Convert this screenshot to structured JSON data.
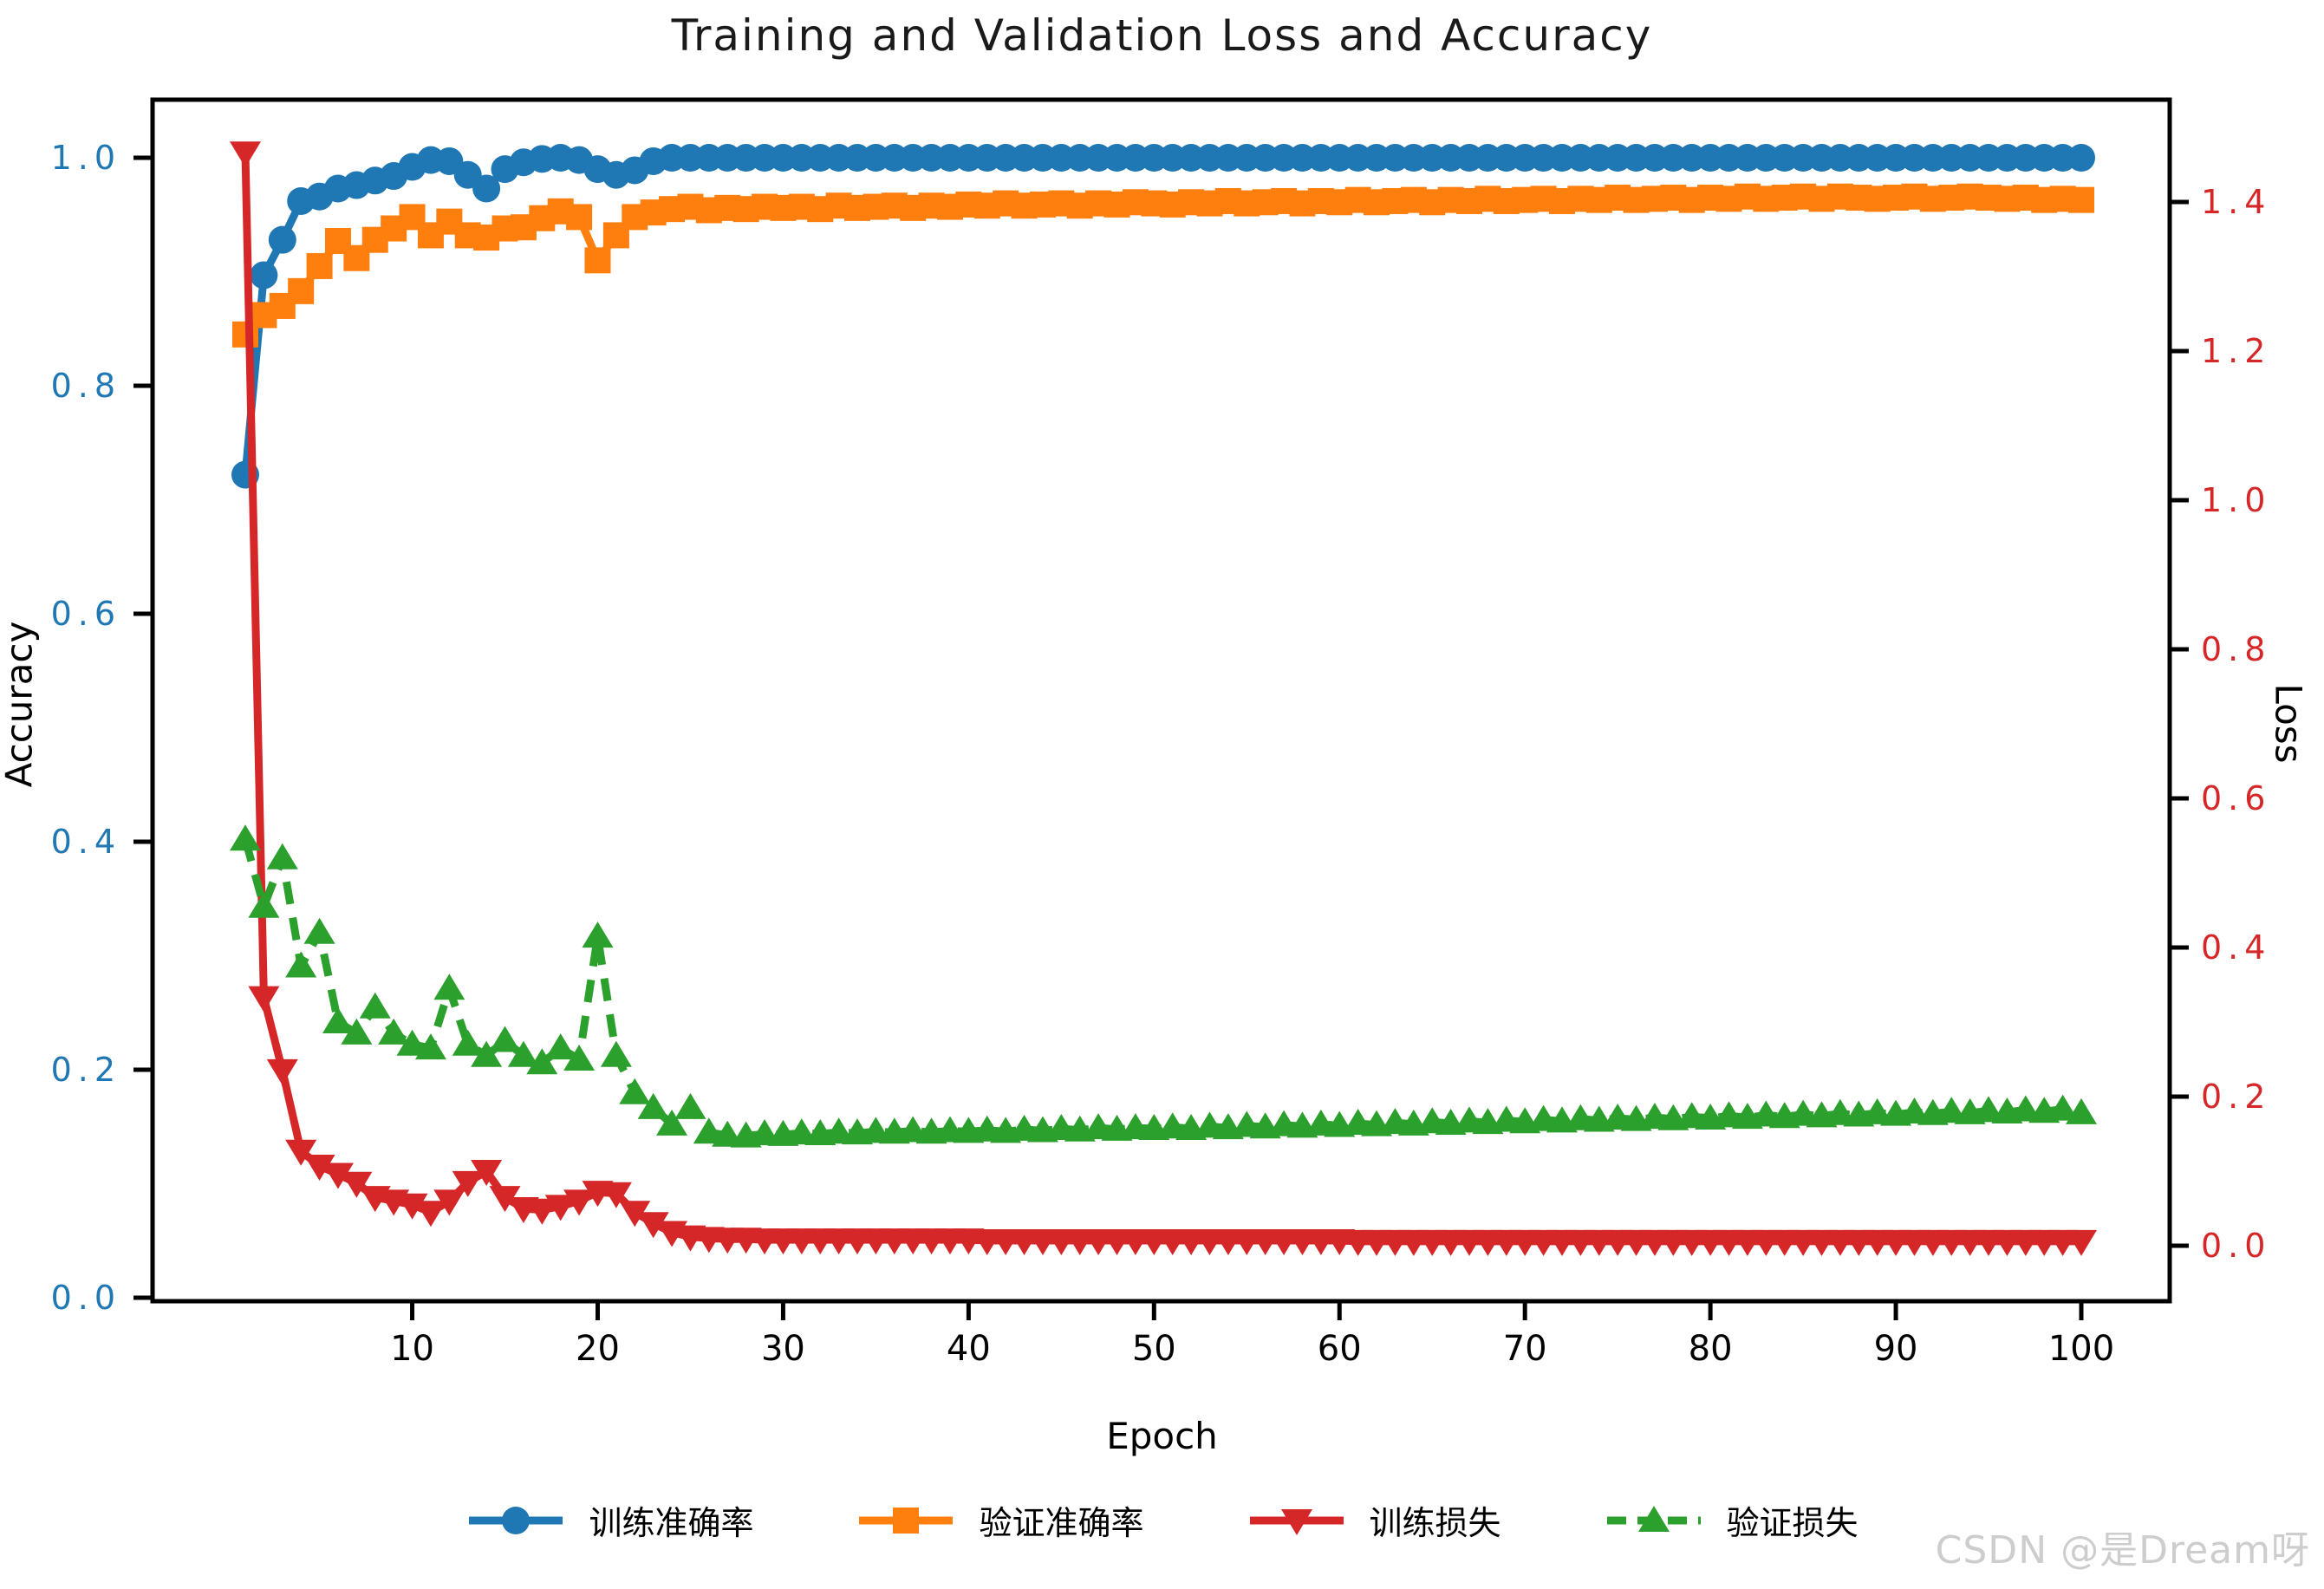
{
  "watermark": "CSDN @是Dream呀",
  "chart_data": {
    "type": "line",
    "title": "Training and Validation Loss and Accuracy",
    "xlabel": "Epoch",
    "ylabel_left": "Accuracy",
    "ylabel_right": "Loss",
    "grid": false,
    "legend_position": "bottom",
    "x_axis": {
      "ticks": [
        10,
        20,
        30,
        40,
        50,
        60,
        70,
        80,
        90,
        100
      ],
      "ticklabels": [
        "10",
        "20",
        "30",
        "40",
        "50",
        "60",
        "70",
        "80",
        "90",
        "100"
      ],
      "range": [
        -4,
        105
      ]
    },
    "left_axis": {
      "ticks": [
        0.0,
        0.2,
        0.4,
        0.6,
        0.8,
        1.0
      ],
      "ticklabels": [
        "0.0",
        "0.2",
        "0.4",
        "0.6",
        "0.8",
        "1.0"
      ],
      "range": [
        0,
        1.054
      ],
      "color": "#1f77b4"
    },
    "right_axis": {
      "ticks": [
        0.0,
        0.2,
        0.4,
        0.6,
        0.8,
        1.0,
        1.2,
        1.4
      ],
      "ticklabels": [
        "0.0",
        "0.2",
        "0.4",
        "0.6",
        "0.8",
        "1.0",
        "1.2",
        "1.4"
      ],
      "range": [
        -0.073,
        1.533
      ],
      "color": "#d62728"
    },
    "epochs": [
      1,
      2,
      3,
      4,
      5,
      6,
      7,
      8,
      9,
      10,
      11,
      12,
      13,
      14,
      15,
      16,
      17,
      18,
      19,
      20,
      21,
      22,
      23,
      24,
      25,
      26,
      27,
      28,
      29,
      30,
      31,
      32,
      33,
      34,
      35,
      36,
      37,
      38,
      39,
      40,
      41,
      42,
      43,
      44,
      45,
      46,
      47,
      48,
      49,
      50,
      51,
      52,
      53,
      54,
      55,
      56,
      57,
      58,
      59,
      60,
      61,
      62,
      63,
      64,
      65,
      66,
      67,
      68,
      69,
      70,
      71,
      72,
      73,
      74,
      75,
      76,
      77,
      78,
      79,
      80,
      81,
      82,
      83,
      84,
      85,
      86,
      87,
      88,
      89,
      90,
      91,
      92,
      93,
      94,
      95,
      96,
      97,
      98,
      99,
      100
    ],
    "series": [
      {
        "key": "train-accuracy",
        "name": "训练准确率",
        "axis": "left",
        "color": "#1f77b4",
        "marker": "circle",
        "linestyle": "solid",
        "values": [
          0.722,
          0.897,
          0.928,
          0.962,
          0.966,
          0.973,
          0.976,
          0.98,
          0.984,
          0.992,
          0.998,
          0.997,
          0.985,
          0.973,
          0.99,
          0.996,
          0.999,
          1.0,
          0.998,
          0.99,
          0.985,
          0.989,
          0.997,
          1.0,
          1.0,
          1.0,
          1.0,
          1.0,
          1.0,
          1.0,
          1.0,
          1.0,
          1.0,
          1.0,
          1.0,
          1.0,
          1.0,
          1.0,
          1.0,
          1.0,
          1.0,
          1.0,
          1.0,
          1.0,
          1.0,
          1.0,
          1.0,
          1.0,
          1.0,
          1.0,
          1.0,
          1.0,
          1.0,
          1.0,
          1.0,
          1.0,
          1.0,
          1.0,
          1.0,
          1.0,
          1.0,
          1.0,
          1.0,
          1.0,
          1.0,
          1.0,
          1.0,
          1.0,
          1.0,
          1.0,
          1.0,
          1.0,
          1.0,
          1.0,
          1.0,
          1.0,
          1.0,
          1.0,
          1.0,
          1.0,
          1.0,
          1.0,
          1.0,
          1.0,
          1.0,
          1.0,
          1.0,
          1.0,
          1.0,
          1.0,
          1.0,
          1.0,
          1.0,
          1.0,
          1.0,
          1.0,
          1.0,
          1.0,
          1.0,
          1.0
        ]
      },
      {
        "key": "val-accuracy",
        "name": "验证准确率",
        "axis": "left",
        "color": "#ff7f0e",
        "marker": "square",
        "linestyle": "solid",
        "values": [
          0.845,
          0.862,
          0.87,
          0.883,
          0.905,
          0.927,
          0.912,
          0.928,
          0.938,
          0.948,
          0.932,
          0.944,
          0.932,
          0.93,
          0.938,
          0.939,
          0.947,
          0.953,
          0.948,
          0.91,
          0.932,
          0.948,
          0.952,
          0.955,
          0.957,
          0.954,
          0.956,
          0.955,
          0.957,
          0.956,
          0.957,
          0.955,
          0.958,
          0.956,
          0.957,
          0.958,
          0.956,
          0.958,
          0.957,
          0.959,
          0.958,
          0.96,
          0.958,
          0.959,
          0.96,
          0.958,
          0.96,
          0.959,
          0.961,
          0.96,
          0.959,
          0.961,
          0.96,
          0.962,
          0.96,
          0.961,
          0.962,
          0.96,
          0.962,
          0.961,
          0.963,
          0.961,
          0.962,
          0.963,
          0.961,
          0.963,
          0.962,
          0.964,
          0.962,
          0.963,
          0.964,
          0.962,
          0.964,
          0.963,
          0.965,
          0.963,
          0.964,
          0.965,
          0.963,
          0.965,
          0.964,
          0.966,
          0.964,
          0.965,
          0.966,
          0.964,
          0.966,
          0.965,
          0.964,
          0.965,
          0.966,
          0.964,
          0.965,
          0.966,
          0.965,
          0.964,
          0.965,
          0.963,
          0.964,
          0.963
        ]
      },
      {
        "key": "train-loss",
        "name": "训练损失",
        "axis": "right",
        "color": "#d62728",
        "marker": "triangle-down",
        "linestyle": "solid",
        "values": [
          1.466,
          0.333,
          0.235,
          0.127,
          0.107,
          0.096,
          0.084,
          0.065,
          0.06,
          0.055,
          0.045,
          0.06,
          0.085,
          0.1,
          0.065,
          0.05,
          0.048,
          0.053,
          0.06,
          0.072,
          0.07,
          0.045,
          0.03,
          0.018,
          0.012,
          0.01,
          0.009,
          0.009,
          0.008,
          0.008,
          0.008,
          0.008,
          0.008,
          0.008,
          0.008,
          0.008,
          0.008,
          0.008,
          0.008,
          0.008,
          0.007,
          0.007,
          0.007,
          0.007,
          0.007,
          0.007,
          0.007,
          0.007,
          0.007,
          0.007,
          0.007,
          0.007,
          0.007,
          0.007,
          0.007,
          0.007,
          0.007,
          0.007,
          0.007,
          0.007,
          0.006,
          0.006,
          0.006,
          0.006,
          0.006,
          0.006,
          0.006,
          0.006,
          0.006,
          0.006,
          0.006,
          0.006,
          0.006,
          0.006,
          0.006,
          0.006,
          0.006,
          0.006,
          0.006,
          0.006,
          0.006,
          0.006,
          0.006,
          0.006,
          0.006,
          0.006,
          0.006,
          0.006,
          0.006,
          0.006,
          0.006,
          0.006,
          0.006,
          0.006,
          0.006,
          0.006,
          0.006,
          0.006,
          0.006,
          0.006
        ]
      },
      {
        "key": "val-loss",
        "name": "验证损失",
        "axis": "right",
        "color": "#2ca02c",
        "marker": "triangle-up",
        "linestyle": "dashed",
        "values": [
          0.545,
          0.455,
          0.52,
          0.375,
          0.42,
          0.3,
          0.285,
          0.32,
          0.285,
          0.27,
          0.265,
          0.345,
          0.27,
          0.255,
          0.275,
          0.255,
          0.245,
          0.265,
          0.25,
          0.415,
          0.255,
          0.205,
          0.185,
          0.163,
          0.185,
          0.152,
          0.148,
          0.147,
          0.15,
          0.149,
          0.151,
          0.15,
          0.152,
          0.151,
          0.153,
          0.152,
          0.154,
          0.152,
          0.154,
          0.153,
          0.155,
          0.153,
          0.156,
          0.154,
          0.157,
          0.155,
          0.158,
          0.156,
          0.158,
          0.157,
          0.159,
          0.157,
          0.16,
          0.158,
          0.161,
          0.159,
          0.162,
          0.16,
          0.163,
          0.161,
          0.164,
          0.162,
          0.165,
          0.163,
          0.166,
          0.164,
          0.167,
          0.165,
          0.168,
          0.166,
          0.169,
          0.167,
          0.17,
          0.168,
          0.171,
          0.169,
          0.172,
          0.17,
          0.173,
          0.171,
          0.174,
          0.172,
          0.175,
          0.173,
          0.176,
          0.174,
          0.177,
          0.175,
          0.178,
          0.176,
          0.179,
          0.177,
          0.18,
          0.178,
          0.181,
          0.179,
          0.182,
          0.18,
          0.183,
          0.178
        ]
      }
    ]
  }
}
